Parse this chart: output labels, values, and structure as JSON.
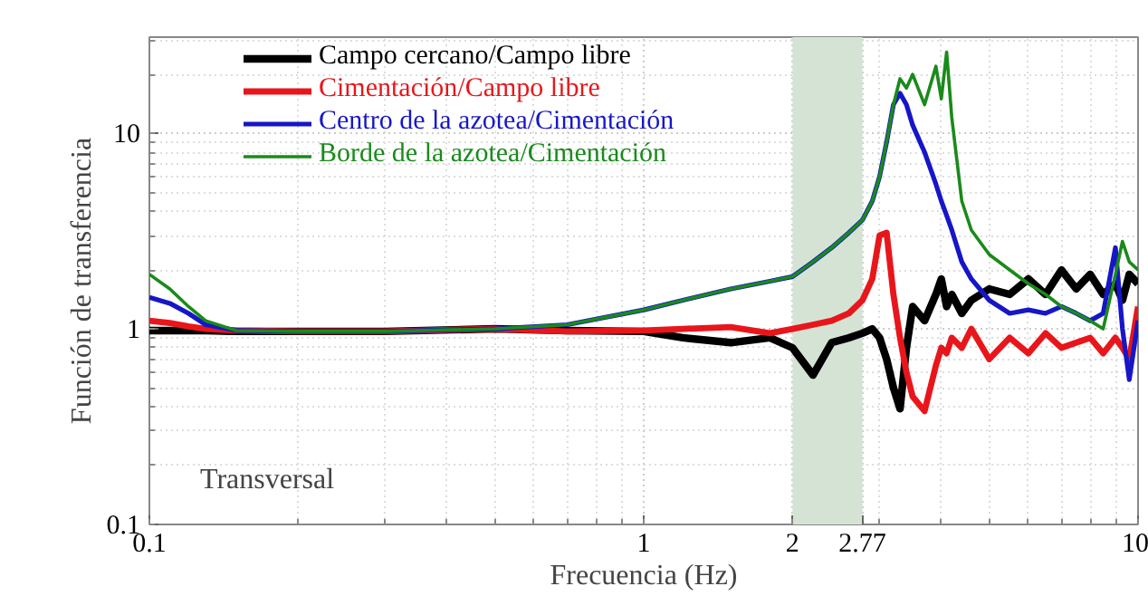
{
  "chart_data": {
    "type": "line",
    "xlabel": "Frecuencia (Hz)",
    "ylabel": "Función de transferencia",
    "log": "xy",
    "grid": true,
    "legend": "top left",
    "line_style": "solid",
    "xlim": [
      0.1,
      10
    ],
    "xticks": [
      0.1,
      1,
      2,
      2.77,
      10
    ],
    "ylim": [
      0.1,
      31
    ],
    "yticks": [
      0.1,
      1,
      10
    ],
    "x": [
      0.1,
      0.11,
      0.12,
      0.13,
      0.15,
      0.2,
      0.3,
      0.5,
      0.7,
      1,
      1.2,
      1.5,
      1.8,
      2,
      2.2,
      2.4,
      2.6,
      2.77,
      2.9,
      3.0,
      3.1,
      3.2,
      3.3,
      3.4,
      3.5,
      3.7,
      3.9,
      4.0,
      4.1,
      4.2,
      4.4,
      4.6,
      5,
      5.5,
      6,
      6.5,
      7,
      7.5,
      8,
      8.5,
      9,
      9.3,
      9.6,
      10
    ],
    "series": [
      {
        "name": "Campo cercano/Campo libre",
        "color": "#000000",
        "values": [
          0.98,
          0.98,
          0.98,
          0.98,
          0.97,
          0.97,
          0.97,
          1.0,
          0.98,
          0.97,
          0.9,
          0.85,
          0.9,
          0.8,
          0.58,
          0.85,
          0.9,
          0.95,
          1.0,
          0.9,
          0.7,
          0.5,
          0.39,
          0.8,
          1.3,
          1.1,
          1.5,
          1.8,
          1.3,
          1.5,
          1.2,
          1.4,
          1.6,
          1.5,
          1.8,
          1.5,
          2.0,
          1.6,
          1.9,
          1.5,
          1.7,
          1.4,
          1.9,
          1.7
        ]
      },
      {
        "name": "Cimentación/Campo libre",
        "color": "#e8161b",
        "values": [
          1.1,
          1.07,
          1.03,
          1.0,
          0.98,
          0.97,
          0.97,
          1.0,
          0.97,
          0.98,
          1.0,
          1.02,
          0.95,
          1.0,
          1.05,
          1.1,
          1.2,
          1.4,
          1.8,
          3.0,
          3.1,
          1.5,
          0.9,
          0.6,
          0.45,
          0.38,
          0.65,
          0.8,
          0.75,
          0.9,
          0.8,
          1.0,
          0.7,
          0.9,
          0.75,
          0.95,
          0.8,
          0.85,
          0.9,
          0.75,
          0.9,
          0.8,
          0.7,
          1.3
        ]
      },
      {
        "name": "Centro de la azotea/Cimentación",
        "color": "#1616c8",
        "values": [
          1.45,
          1.35,
          1.2,
          1.05,
          0.98,
          0.97,
          0.97,
          1.0,
          1.05,
          1.25,
          1.4,
          1.6,
          1.75,
          1.85,
          2.2,
          2.6,
          3.1,
          3.6,
          4.5,
          6,
          9,
          14,
          16,
          14,
          11,
          8,
          5.5,
          4.5,
          3.8,
          3.2,
          2.2,
          1.8,
          1.4,
          1.2,
          1.25,
          1.2,
          1.3,
          1.2,
          1.1,
          1.2,
          2.6,
          1.0,
          0.55,
          1.1
        ]
      },
      {
        "name": "Borde de la azotea/Cimentación",
        "color": "#1a8a1a",
        "values": [
          1.9,
          1.6,
          1.3,
          1.1,
          0.98,
          0.97,
          0.97,
          1.0,
          1.05,
          1.25,
          1.4,
          1.6,
          1.75,
          1.85,
          2.2,
          2.6,
          3.1,
          3.6,
          4.5,
          6,
          9,
          14,
          19,
          17,
          20,
          14,
          22,
          15,
          26,
          12,
          4.5,
          3.2,
          2.4,
          2.0,
          1.7,
          1.5,
          1.3,
          1.2,
          1.1,
          1.0,
          1.9,
          2.8,
          2.2,
          2.0
        ]
      }
    ],
    "bands": [
      {
        "axis": "x",
        "from": 2,
        "to": 2.77,
        "color": "#d5e3d5"
      }
    ],
    "annotations": [
      "Transversal"
    ]
  }
}
